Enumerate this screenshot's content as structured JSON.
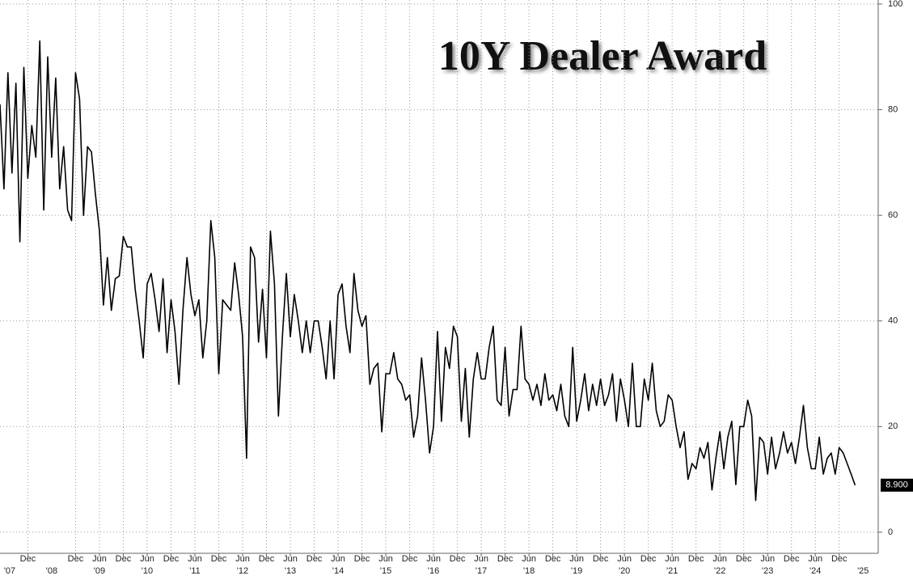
{
  "chart_data": {
    "type": "line",
    "title": "10Y Dealer Award",
    "color": "#000000",
    "grid": true,
    "x": [
      "2007-05",
      "2007-06",
      "2007-07",
      "2007-08",
      "2007-09",
      "2007-10",
      "2007-11",
      "2007-12",
      "2008-01",
      "2008-02",
      "2008-03",
      "2008-04",
      "2008-05",
      "2008-06",
      "2008-07",
      "2008-08",
      "2008-09",
      "2008-10",
      "2008-11",
      "2008-12",
      "2009-01",
      "2009-02",
      "2009-03",
      "2009-04",
      "2009-05",
      "2009-06",
      "2009-07",
      "2009-08",
      "2009-09",
      "2009-10",
      "2009-11",
      "2009-12",
      "2010-01",
      "2010-02",
      "2010-03",
      "2010-04",
      "2010-05",
      "2010-06",
      "2010-07",
      "2010-08",
      "2010-09",
      "2010-10",
      "2010-11",
      "2010-12",
      "2011-01",
      "2011-02",
      "2011-03",
      "2011-04",
      "2011-05",
      "2011-06",
      "2011-07",
      "2011-08",
      "2011-09",
      "2011-10",
      "2011-11",
      "2011-12",
      "2012-01",
      "2012-02",
      "2012-03",
      "2012-04",
      "2012-05",
      "2012-06",
      "2012-07",
      "2012-08",
      "2012-09",
      "2012-10",
      "2012-11",
      "2012-12",
      "2013-01",
      "2013-02",
      "2013-03",
      "2013-04",
      "2013-05",
      "2013-06",
      "2013-07",
      "2013-08",
      "2013-09",
      "2013-10",
      "2013-11",
      "2013-12",
      "2014-01",
      "2014-02",
      "2014-03",
      "2014-04",
      "2014-05",
      "2014-06",
      "2014-07",
      "2014-08",
      "2014-09",
      "2014-10",
      "2014-11",
      "2014-12",
      "2015-01",
      "2015-02",
      "2015-03",
      "2015-04",
      "2015-05",
      "2015-06",
      "2015-07",
      "2015-08",
      "2015-09",
      "2015-10",
      "2015-11",
      "2015-12",
      "2016-01",
      "2016-02",
      "2016-03",
      "2016-04",
      "2016-05",
      "2016-06",
      "2016-07",
      "2016-08",
      "2016-09",
      "2016-10",
      "2016-11",
      "2016-12",
      "2017-01",
      "2017-02",
      "2017-03",
      "2017-04",
      "2017-05",
      "2017-06",
      "2017-07",
      "2017-08",
      "2017-09",
      "2017-10",
      "2017-11",
      "2017-12",
      "2018-01",
      "2018-02",
      "2018-03",
      "2018-04",
      "2018-05",
      "2018-06",
      "2018-07",
      "2018-08",
      "2018-09",
      "2018-10",
      "2018-11",
      "2018-12",
      "2019-01",
      "2019-02",
      "2019-03",
      "2019-04",
      "2019-05",
      "2019-06",
      "2019-07",
      "2019-08",
      "2019-09",
      "2019-10",
      "2019-11",
      "2019-12",
      "2020-01",
      "2020-02",
      "2020-03",
      "2020-04",
      "2020-05",
      "2020-06",
      "2020-07",
      "2020-08",
      "2020-09",
      "2020-10",
      "2020-11",
      "2020-12",
      "2021-01",
      "2021-02",
      "2021-03",
      "2021-04",
      "2021-05",
      "2021-06",
      "2021-07",
      "2021-08",
      "2021-09",
      "2021-10",
      "2021-11",
      "2021-12",
      "2022-01",
      "2022-02",
      "2022-03",
      "2022-04",
      "2022-05",
      "2022-06",
      "2022-07",
      "2022-08",
      "2022-09",
      "2022-10",
      "2022-11",
      "2022-12",
      "2023-01",
      "2023-02",
      "2023-03",
      "2023-04",
      "2023-05",
      "2023-06",
      "2023-07",
      "2023-08",
      "2023-09",
      "2023-10",
      "2023-11",
      "2023-12",
      "2024-01",
      "2024-02",
      "2024-03",
      "2024-04",
      "2024-05",
      "2024-06",
      "2024-07",
      "2024-08",
      "2024-09",
      "2024-10",
      "2024-11",
      "2024-12",
      "2025-01",
      "2025-02",
      "2025-03",
      "2025-04"
    ],
    "values": [
      81,
      65,
      87,
      68,
      85,
      55,
      88,
      67,
      77,
      71,
      93,
      61,
      90,
      71,
      86,
      65,
      73,
      61,
      59,
      87,
      82,
      60,
      73,
      72,
      64,
      57,
      43,
      52,
      42,
      48,
      48.5,
      56,
      54,
      54,
      46,
      40,
      33,
      47,
      49,
      44,
      38,
      48,
      34,
      44,
      38,
      28,
      42,
      52,
      45,
      41,
      44,
      33,
      40,
      59,
      52,
      30,
      44,
      43,
      42,
      51,
      45,
      37,
      14,
      54,
      52,
      36,
      46,
      33,
      57,
      47,
      22,
      37,
      49,
      37,
      45,
      40,
      34,
      40,
      34,
      40,
      40,
      35,
      29,
      40,
      29,
      45,
      47,
      39,
      34,
      49,
      42,
      39,
      41,
      28,
      31,
      32,
      19,
      30,
      30,
      34,
      29,
      28,
      25,
      26,
      18,
      22,
      33,
      25,
      15,
      20,
      38,
      21,
      35,
      31,
      39,
      37,
      21,
      31,
      18,
      29,
      34,
      29,
      29,
      35,
      39,
      25,
      24,
      35,
      22,
      27,
      27,
      39,
      29,
      28,
      25,
      28,
      24,
      30,
      25,
      26,
      23,
      28,
      22,
      20,
      35,
      21,
      25,
      30,
      23,
      28,
      24,
      29,
      24,
      26,
      30,
      21,
      29,
      25,
      20,
      32,
      20,
      20,
      29,
      25,
      32,
      23,
      20,
      21,
      26,
      25,
      20,
      16,
      19,
      10,
      13,
      12,
      16,
      14,
      17,
      8,
      14,
      19,
      12,
      18,
      21,
      9,
      20,
      20,
      25,
      22,
      6,
      18,
      17,
      11,
      18,
      12,
      15,
      19,
      15,
      17,
      13,
      18,
      24,
      16,
      12,
      12,
      18,
      11,
      14,
      15,
      11,
      16,
      15,
      13,
      11,
      8.9
    ],
    "value_labels": [
      null,
      null,
      null,
      null,
      null,
      null,
      null,
      null,
      null,
      null,
      null,
      null,
      null,
      null,
      null,
      null,
      null,
      null,
      null,
      null,
      null,
      null,
      null,
      null,
      null,
      null,
      null,
      null,
      null,
      null,
      null,
      null,
      null,
      null,
      null,
      null,
      null,
      null,
      null,
      null,
      null,
      null,
      null,
      null,
      null,
      null,
      null,
      null,
      null,
      null,
      null,
      null,
      null,
      null,
      null,
      null,
      null,
      null,
      null,
      null,
      null,
      null,
      null,
      null,
      null,
      null,
      null,
      null,
      null,
      null,
      null,
      null,
      null,
      null,
      null,
      null,
      null,
      null,
      null,
      null,
      null,
      null,
      null,
      null,
      null,
      null,
      null,
      null,
      null,
      null,
      null,
      null,
      null,
      null,
      null,
      null,
      null,
      null,
      null,
      null,
      null,
      null,
      null,
      null,
      null,
      null,
      null,
      null,
      null,
      null,
      null,
      null,
      null,
      null,
      null,
      null,
      null,
      null,
      null,
      null,
      null,
      null,
      null,
      null,
      null,
      null,
      null,
      null,
      null,
      null,
      null,
      null,
      null,
      null,
      null,
      null,
      null,
      null,
      null,
      null,
      null,
      null,
      null,
      null,
      null,
      null,
      null,
      null,
      null,
      null,
      null,
      null,
      null,
      null,
      null,
      null,
      null,
      null,
      null,
      null,
      null,
      null,
      null,
      null,
      null,
      null,
      null,
      null,
      null,
      null,
      null,
      null,
      null,
      null,
      null,
      null,
      null,
      null,
      null,
      null,
      null,
      null,
      null,
      null,
      null,
      null,
      null,
      null,
      null,
      null,
      null,
      null,
      null,
      null,
      null,
      null,
      null,
      null,
      null,
      null,
      null,
      null,
      null,
      null,
      null,
      null,
      null,
      null,
      null,
      null,
      null,
      null,
      null,
      null,
      null,
      "8.900"
    ],
    "xlim": [
      "2007-05",
      "2025-09"
    ],
    "xticks": [
      {
        "value": "2007-12",
        "label": "Dec"
      },
      {
        "value": "2008-12",
        "label": "Dec"
      },
      {
        "value": "2009-06",
        "label": "Jun"
      },
      {
        "value": "2009-12",
        "label": "Dec"
      },
      {
        "value": "2010-06",
        "label": "Jun"
      },
      {
        "value": "2010-12",
        "label": "Dec"
      },
      {
        "value": "2011-06",
        "label": "Jun"
      },
      {
        "value": "2011-12",
        "label": "Dec"
      },
      {
        "value": "2012-06",
        "label": "Jun"
      },
      {
        "value": "2012-12",
        "label": "Dec"
      },
      {
        "value": "2013-06",
        "label": "Jun"
      },
      {
        "value": "2013-12",
        "label": "Dec"
      },
      {
        "value": "2014-06",
        "label": "Jun"
      },
      {
        "value": "2014-12",
        "label": "Dec"
      },
      {
        "value": "2015-06",
        "label": "Jun"
      },
      {
        "value": "2015-12",
        "label": "Dec"
      },
      {
        "value": "2016-06",
        "label": "Jun"
      },
      {
        "value": "2016-12",
        "label": "Dec"
      },
      {
        "value": "2017-06",
        "label": "Jun"
      },
      {
        "value": "2017-12",
        "label": "Dec"
      },
      {
        "value": "2018-06",
        "label": "Jun"
      },
      {
        "value": "2018-12",
        "label": "Dec"
      },
      {
        "value": "2019-06",
        "label": "Jun"
      },
      {
        "value": "2019-12",
        "label": "Dec"
      },
      {
        "value": "2020-06",
        "label": "Jun"
      },
      {
        "value": "2020-12",
        "label": "Dec"
      },
      {
        "value": "2021-06",
        "label": "Jun"
      },
      {
        "value": "2021-12",
        "label": "Dec"
      },
      {
        "value": "2022-06",
        "label": "Jun"
      },
      {
        "value": "2022-12",
        "label": "Dec"
      },
      {
        "value": "2023-06",
        "label": "Jun"
      },
      {
        "value": "2023-12",
        "label": "Dec"
      },
      {
        "value": "2024-06",
        "label": "Jun"
      },
      {
        "value": "2024-12",
        "label": "Dec"
      }
    ],
    "year_ticks": [
      {
        "value": "2007-06",
        "label": "'07"
      },
      {
        "value": "2008-06",
        "label": "'08"
      },
      {
        "value": "2009-06",
        "label": "'09"
      },
      {
        "value": "2010-06",
        "label": "'10"
      },
      {
        "value": "2011-06",
        "label": "'11"
      },
      {
        "value": "2012-06",
        "label": "'12"
      },
      {
        "value": "2013-06",
        "label": "'13"
      },
      {
        "value": "2014-06",
        "label": "'14"
      },
      {
        "value": "2015-06",
        "label": "'15"
      },
      {
        "value": "2016-06",
        "label": "'16"
      },
      {
        "value": "2017-06",
        "label": "'17"
      },
      {
        "value": "2018-06",
        "label": "'18"
      },
      {
        "value": "2019-06",
        "label": "'19"
      },
      {
        "value": "2020-06",
        "label": "'20"
      },
      {
        "value": "2021-06",
        "label": "'21"
      },
      {
        "value": "2022-06",
        "label": "'22"
      },
      {
        "value": "2023-06",
        "label": "'23"
      },
      {
        "value": "2024-06",
        "label": "'24"
      },
      {
        "value": "2025-06",
        "label": "'25"
      }
    ],
    "ylim": [
      -4,
      100
    ],
    "yticks": [
      0,
      20,
      40,
      60,
      80,
      100
    ]
  }
}
